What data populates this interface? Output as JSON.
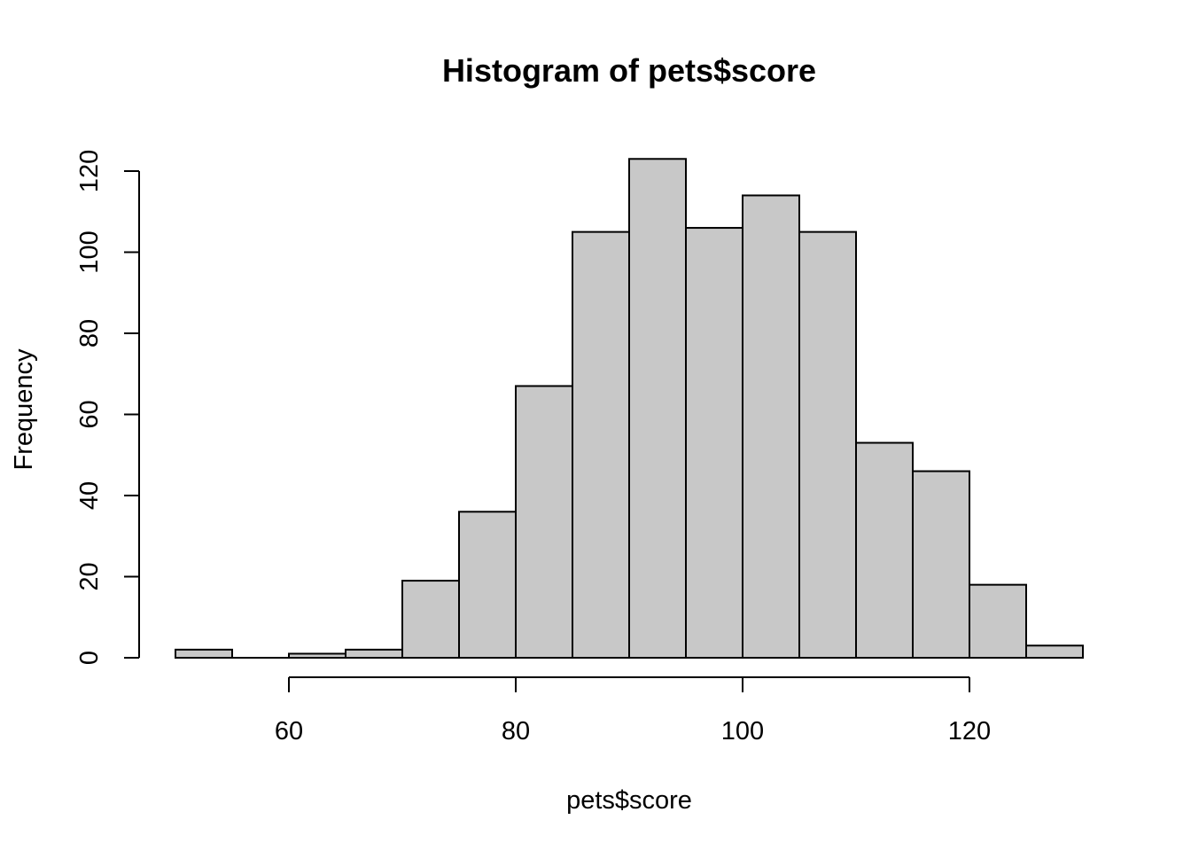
{
  "chart_data": {
    "type": "bar",
    "title": "Histogram of pets$score",
    "xlabel": "pets$score",
    "ylabel": "Frequency",
    "bins": [
      {
        "start": 50,
        "end": 55,
        "count": 2
      },
      {
        "start": 55,
        "end": 60,
        "count": 0
      },
      {
        "start": 60,
        "end": 65,
        "count": 1
      },
      {
        "start": 65,
        "end": 70,
        "count": 2
      },
      {
        "start": 70,
        "end": 75,
        "count": 19
      },
      {
        "start": 75,
        "end": 80,
        "count": 36
      },
      {
        "start": 80,
        "end": 85,
        "count": 67
      },
      {
        "start": 85,
        "end": 90,
        "count": 105
      },
      {
        "start": 90,
        "end": 95,
        "count": 123
      },
      {
        "start": 95,
        "end": 100,
        "count": 106
      },
      {
        "start": 100,
        "end": 105,
        "count": 114
      },
      {
        "start": 105,
        "end": 110,
        "count": 105
      },
      {
        "start": 110,
        "end": 115,
        "count": 53
      },
      {
        "start": 115,
        "end": 120,
        "count": 46
      },
      {
        "start": 120,
        "end": 125,
        "count": 18
      },
      {
        "start": 125,
        "end": 130,
        "count": 3
      }
    ],
    "xlim": [
      50,
      130
    ],
    "ylim": [
      0,
      123
    ],
    "x_ticks": [
      60,
      80,
      100,
      120
    ],
    "y_ticks": [
      0,
      20,
      40,
      60,
      80,
      100,
      120
    ],
    "bar_color": "#c8c8c8",
    "grid": false
  }
}
